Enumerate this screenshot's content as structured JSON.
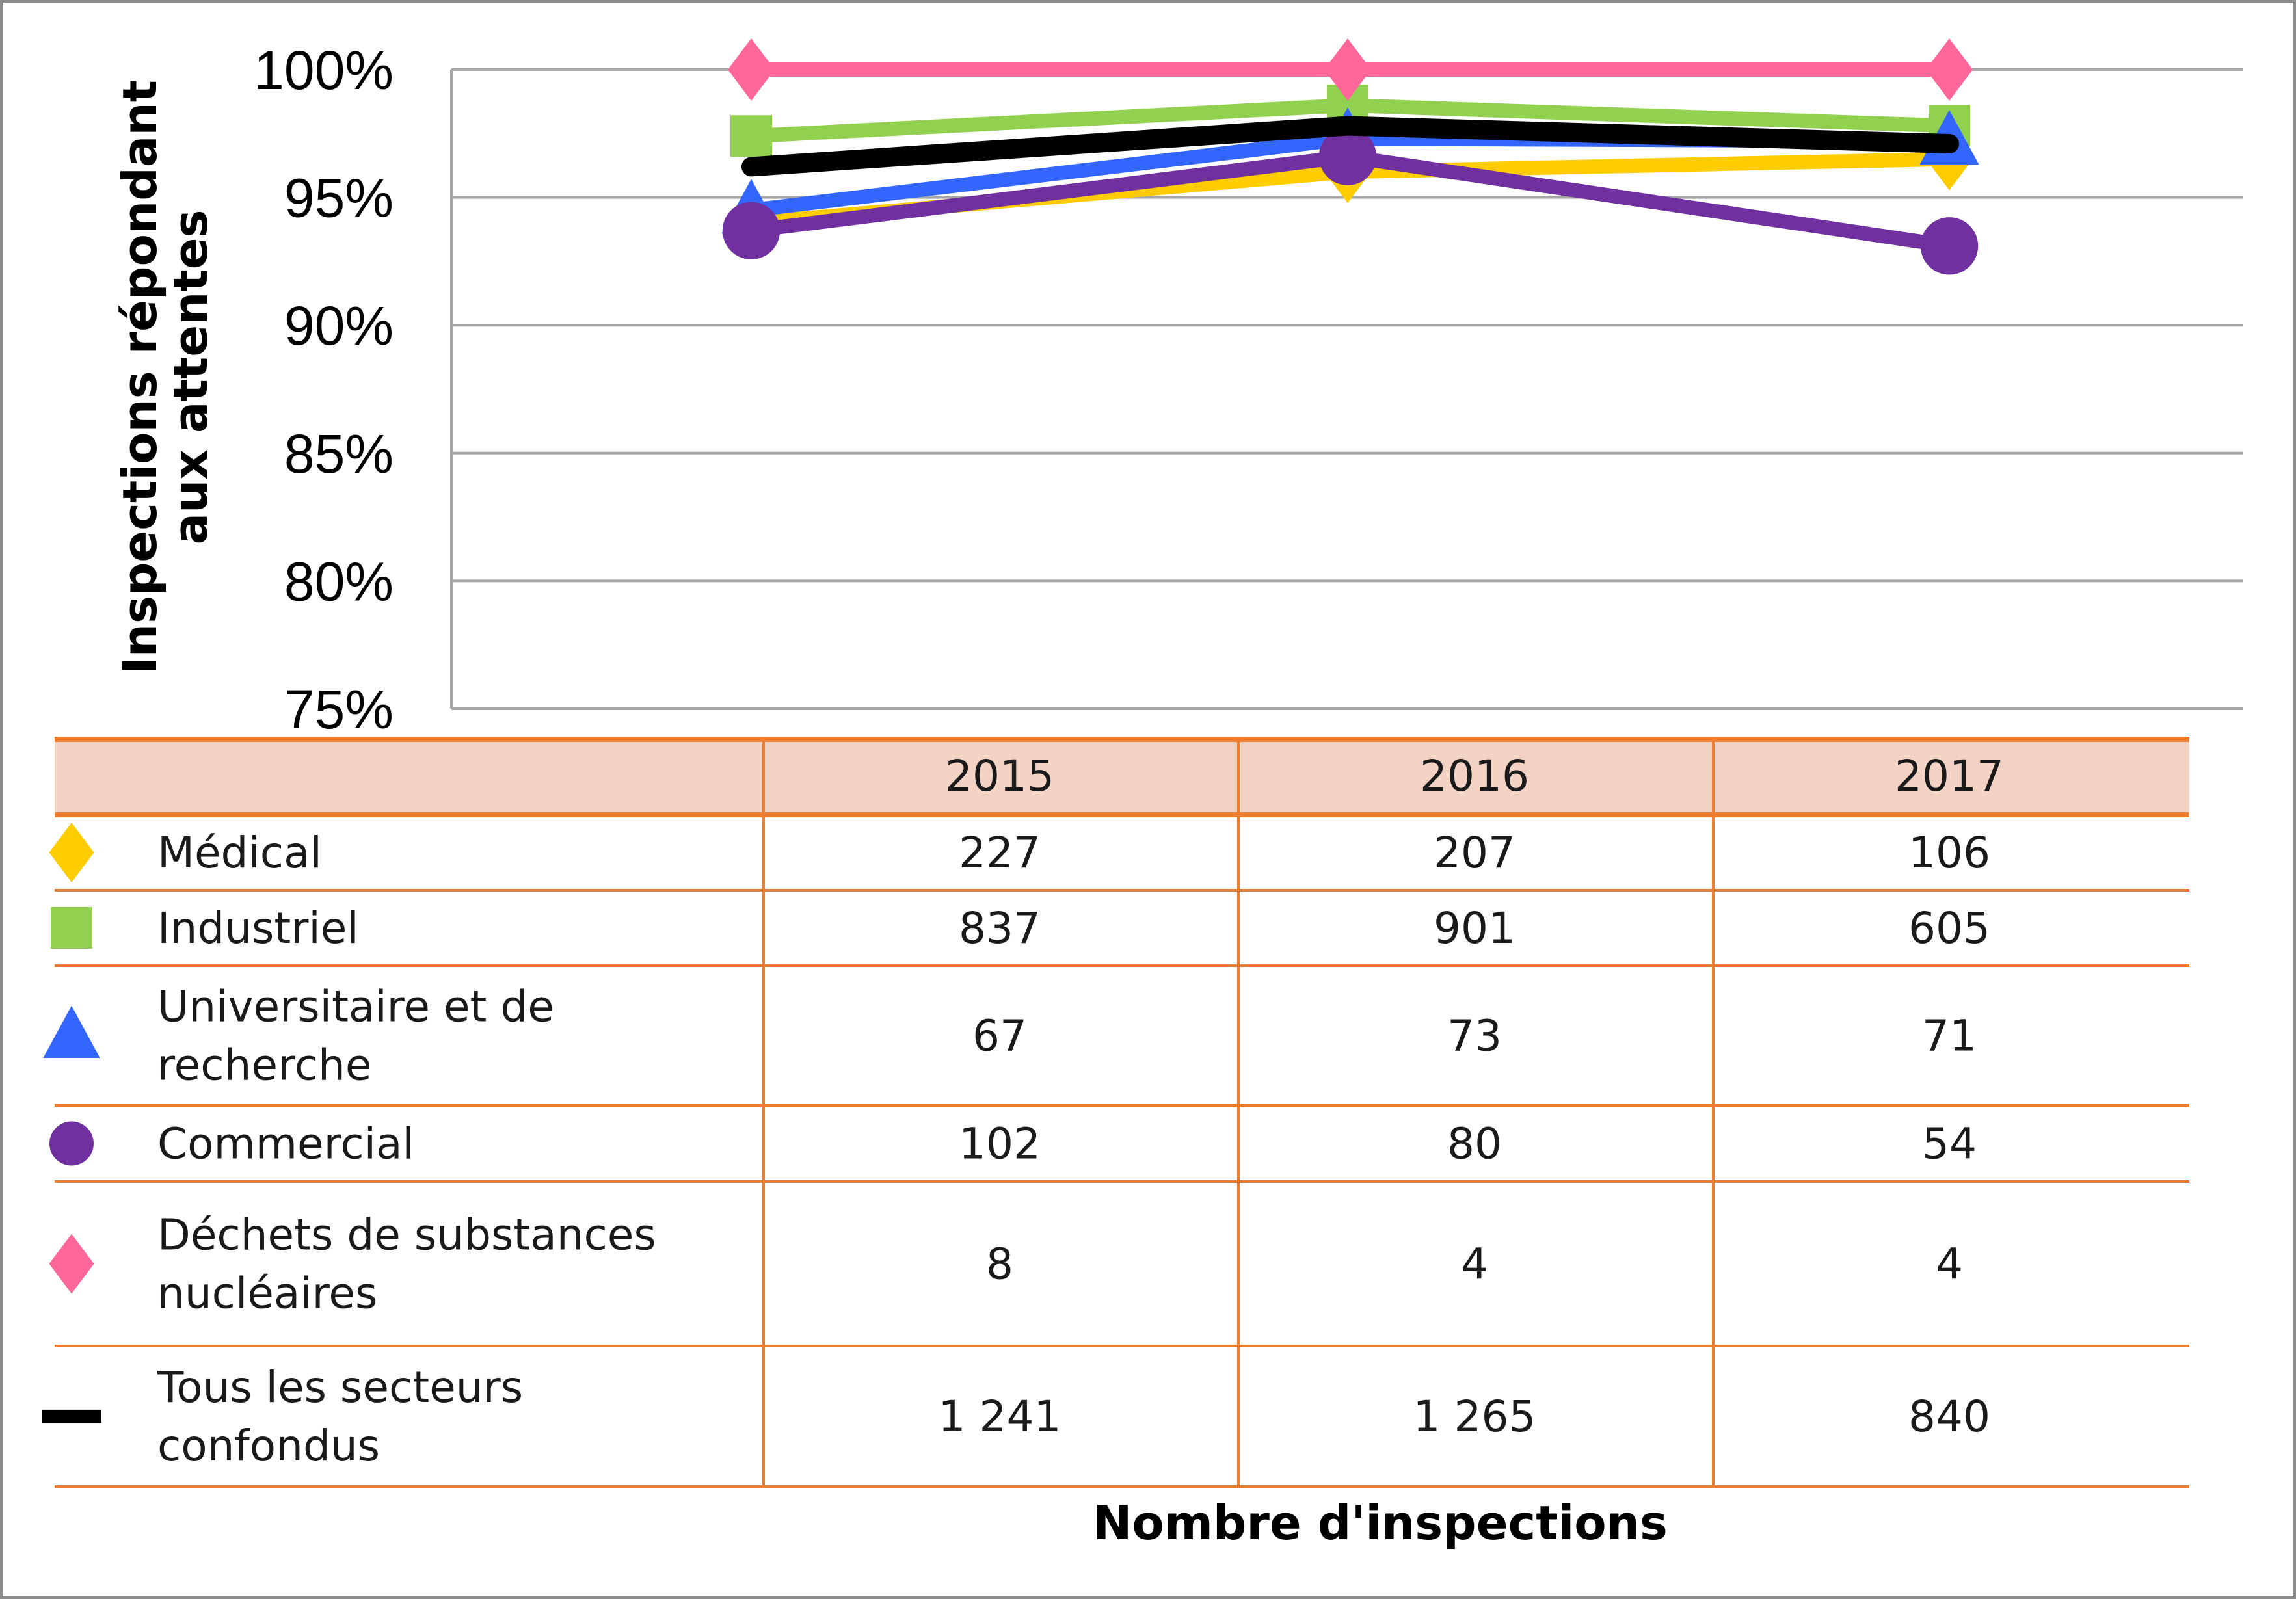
{
  "chart_data": {
    "type": "line",
    "categories": [
      "2015",
      "2016",
      "2017"
    ],
    "ylabel": "Inspections répondant aux attentes",
    "xlabel": "Nombre d'inspections",
    "ylim": [
      75,
      100
    ],
    "yticks": [
      "75%",
      "80%",
      "85%",
      "90%",
      "95%",
      "100%"
    ],
    "grid": true,
    "series": [
      {
        "name": "Médical",
        "marker": "diamond",
        "color": "#ffcc00",
        "values": [
          94.0,
          96.0,
          96.5
        ],
        "counts": [
          "227",
          "207",
          "106"
        ]
      },
      {
        "name": "Industriel",
        "marker": "square",
        "color": "#92d050",
        "values": [
          97.4,
          98.6,
          97.8
        ],
        "counts": [
          "837",
          "901",
          "605"
        ]
      },
      {
        "name": "Universitaire et de recherche",
        "marker": "triangle",
        "color": "#3366ff",
        "values": [
          94.5,
          97.3,
          97.2
        ],
        "counts": [
          "67",
          "73",
          "71"
        ]
      },
      {
        "name": "Commercial",
        "marker": "circle",
        "color": "#7030a0",
        "values": [
          93.7,
          96.6,
          93.1
        ],
        "counts": [
          "102",
          "80",
          "54"
        ]
      },
      {
        "name": "Déchets de substances nucléaires",
        "marker": "diamond",
        "color": "#ff6699",
        "values": [
          100,
          100,
          100
        ],
        "counts": [
          "8",
          "4",
          "4"
        ]
      },
      {
        "name": "Tous les secteurs confondus",
        "marker": "dash",
        "color": "#000000",
        "values": [
          96.2,
          97.8,
          97.1
        ],
        "counts": [
          "1 241",
          "1 265",
          "840"
        ]
      }
    ]
  },
  "colors": {
    "grid": "#a6a6a6",
    "table_rule": "#ed7d31",
    "table_header_bg": "#f2d3c4"
  }
}
